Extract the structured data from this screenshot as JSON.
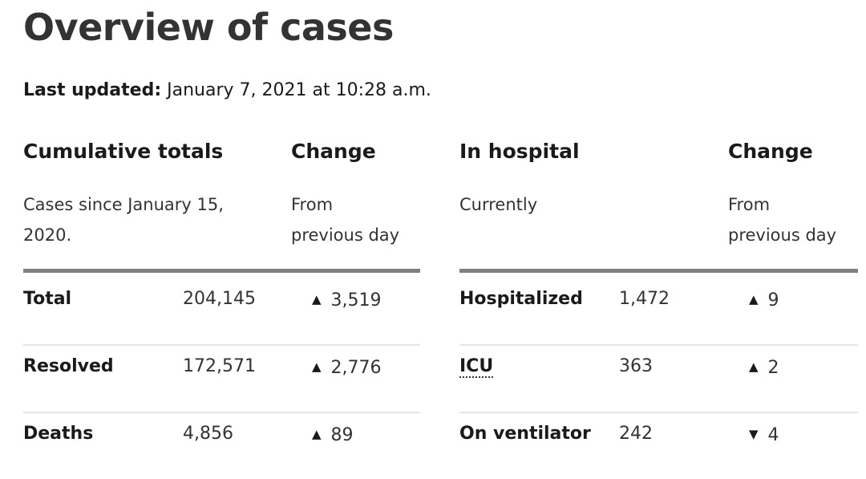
{
  "title": "Overview of cases",
  "last_updated": {
    "label": "Last updated:",
    "value": " January 7, 2021 at 10:28 a.m."
  },
  "cumulative": {
    "header": "Cumulative totals",
    "subheader_line1": "Cases since January 15,",
    "subheader_line2": "2020.",
    "change_header": "Change",
    "change_sub_line1": "From",
    "change_sub_line2": "previous day",
    "rows": [
      {
        "label": "Total",
        "value": "204,145",
        "direction": "up",
        "change": "3,519"
      },
      {
        "label": "Resolved",
        "value": "172,571",
        "direction": "up",
        "change": "2,776"
      },
      {
        "label": "Deaths",
        "value": "4,856",
        "direction": "up",
        "change": "89"
      }
    ]
  },
  "hospital": {
    "header": "In hospital",
    "subheader": "Currently",
    "change_header": "Change",
    "change_sub_line1": "From",
    "change_sub_line2": "previous day",
    "rows": [
      {
        "label": "Hospitalized",
        "value": "1,472",
        "direction": "up",
        "change": "9"
      },
      {
        "label": "ICU",
        "value": "363",
        "direction": "up",
        "change": "2"
      },
      {
        "label": "On ventilator",
        "value": "242",
        "direction": "down",
        "change": "4"
      }
    ]
  },
  "icons": {
    "up": "triangle-up-icon",
    "down": "triangle-down-icon"
  },
  "colors": {
    "rule": "#808080",
    "divider": "#e6e6e6",
    "text": "#1a1a1a"
  }
}
